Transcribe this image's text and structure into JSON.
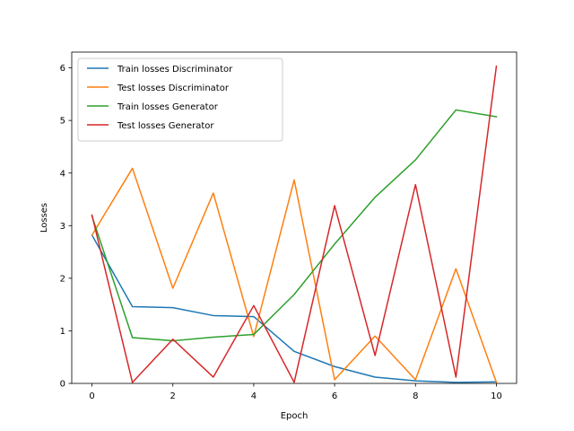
{
  "chart_data": {
    "type": "line",
    "title": "",
    "xlabel": "Epoch",
    "ylabel": "Losses",
    "xlim": [
      -0.5,
      10.5
    ],
    "ylim": [
      0,
      6.3
    ],
    "xticks": [
      0,
      2,
      4,
      6,
      8,
      10
    ],
    "yticks": [
      0,
      1,
      2,
      3,
      4,
      5,
      6
    ],
    "grid": false,
    "legend_position": "upper-left",
    "x": [
      0,
      1,
      2,
      3,
      4,
      5,
      6,
      7,
      8,
      9,
      10
    ],
    "series": [
      {
        "name": "Train losses Discriminator",
        "color": "#1f77b4",
        "values": [
          2.82,
          1.46,
          1.44,
          1.29,
          1.27,
          0.61,
          0.32,
          0.12,
          0.05,
          0.02,
          0.03
        ]
      },
      {
        "name": "Test losses Discriminator",
        "color": "#ff7f0e",
        "values": [
          2.82,
          4.09,
          1.81,
          3.62,
          0.89,
          3.87,
          0.07,
          0.9,
          0.07,
          2.18,
          0.02
        ]
      },
      {
        "name": "Train losses Generator",
        "color": "#2ca02c",
        "values": [
          3.18,
          0.87,
          0.81,
          0.88,
          0.93,
          1.69,
          2.65,
          3.54,
          4.25,
          5.2,
          5.07
        ]
      },
      {
        "name": "Test losses Generator",
        "color": "#d62728",
        "values": [
          3.2,
          0.02,
          0.84,
          0.12,
          1.48,
          0.02,
          3.38,
          0.53,
          3.78,
          0.12,
          6.03
        ]
      }
    ]
  }
}
